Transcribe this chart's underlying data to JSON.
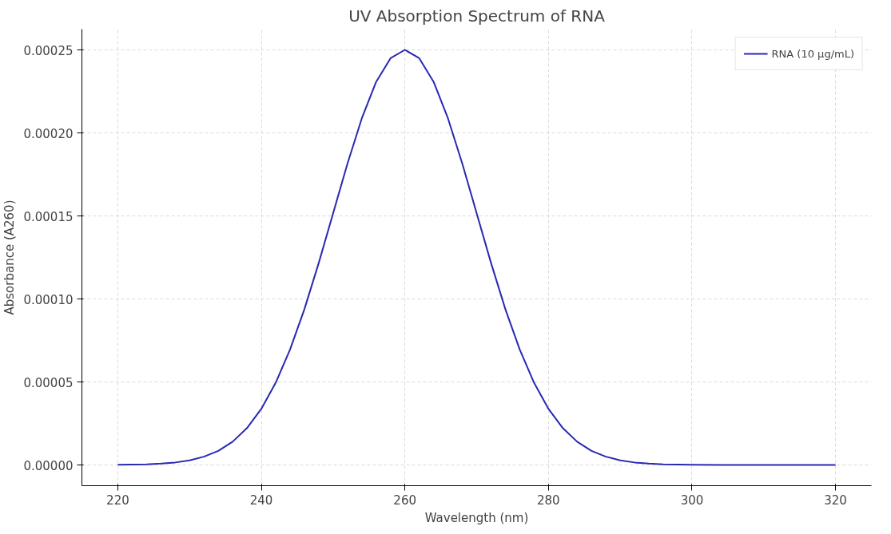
{
  "chart_data": {
    "type": "line",
    "title": "UV Absorption Spectrum of RNA",
    "xlabel": "Wavelength (nm)",
    "ylabel": "Absorbance (A260)",
    "x": [
      220,
      222,
      224,
      226,
      228,
      230,
      232,
      234,
      236,
      238,
      240,
      242,
      244,
      246,
      248,
      250,
      252,
      254,
      256,
      258,
      260,
      262,
      264,
      266,
      268,
      270,
      272,
      274,
      276,
      278,
      280,
      282,
      284,
      286,
      288,
      290,
      292,
      294,
      296,
      298,
      300,
      304,
      308,
      312,
      316,
      320
    ],
    "series": [
      {
        "name": "RNA (10 μg/mL)",
        "color": "#2828b4",
        "values": [
          1e-07,
          2e-07,
          4e-07,
          8e-07,
          1.5e-06,
          2.8e-06,
          5e-06,
          8.5e-06,
          1.4e-05,
          2.22e-05,
          3.38e-05,
          4.95e-05,
          6.95e-05,
          9.38e-05,
          0.0001217,
          0.0001516,
          0.0001815,
          0.0002088,
          0.0002308,
          0.000245,
          0.00025,
          0.000245,
          0.0002308,
          0.0002088,
          0.0001815,
          0.0001516,
          0.0001217,
          9.38e-05,
          6.95e-05,
          4.95e-05,
          3.38e-05,
          2.22e-05,
          1.4e-05,
          8.5e-06,
          5e-06,
          2.8e-06,
          1.5e-06,
          8e-07,
          4e-07,
          2e-07,
          1e-07,
          0,
          0,
          0,
          0,
          0
        ]
      }
    ],
    "xlim": [
      215,
      325
    ],
    "ylim": [
      -1.25e-05,
      0.0002625
    ],
    "xticks": [
      220,
      240,
      260,
      280,
      300,
      320
    ],
    "yticks": [
      {
        "value": 0,
        "label": "0.00000"
      },
      {
        "value": 5e-05,
        "label": "0.00005"
      },
      {
        "value": 0.0001,
        "label": "0.00010"
      },
      {
        "value": 0.00015,
        "label": "0.00015"
      },
      {
        "value": 0.0002,
        "label": "0.00020"
      },
      {
        "value": 0.00025,
        "label": "0.00025"
      }
    ],
    "grid": true,
    "legend": "top right",
    "marker": "none",
    "line_style": "solid"
  }
}
